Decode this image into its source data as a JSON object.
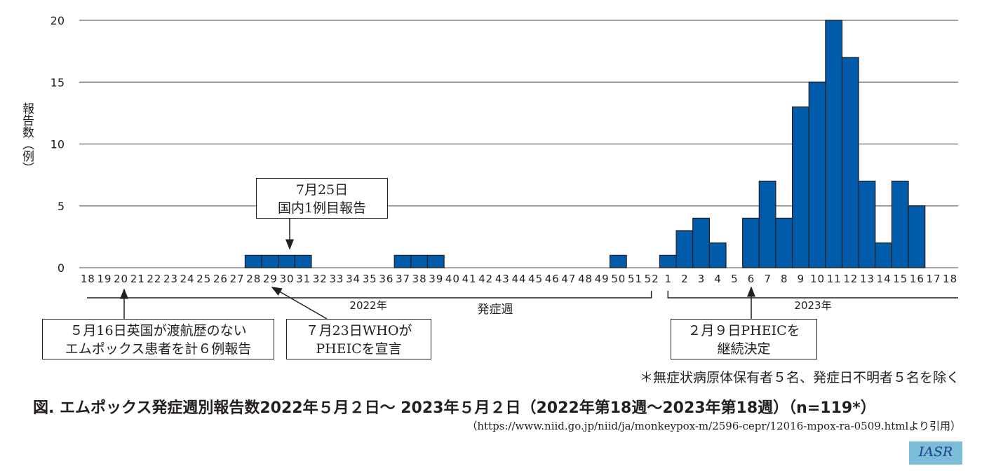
{
  "chart_data": {
    "type": "bar",
    "title": "図. エムポックス発症週別報告数2022年５月２日～ 2023年５月２日（2022年第18週～2023年第18週）（n=119*）",
    "xlabel": "発症週",
    "ylabel": "報告数（例）",
    "ylim": [
      0,
      20
    ],
    "yticks": [
      0,
      5,
      10,
      15,
      20
    ],
    "grid": true,
    "year_groups": [
      {
        "label": "2022年",
        "weeks": [
          "18",
          "19",
          "20",
          "21",
          "22",
          "23",
          "24",
          "25",
          "26",
          "27",
          "28",
          "29",
          "30",
          "31",
          "32",
          "33",
          "34",
          "35",
          "36",
          "37",
          "38",
          "39",
          "40",
          "41",
          "42",
          "43",
          "44",
          "45",
          "46",
          "47",
          "48",
          "49",
          "50",
          "51",
          "52"
        ],
        "values": [
          0,
          0,
          0,
          0,
          0,
          0,
          0,
          0,
          0,
          0,
          1,
          1,
          1,
          1,
          0,
          0,
          0,
          0,
          0,
          1,
          1,
          1,
          0,
          0,
          0,
          0,
          0,
          0,
          0,
          0,
          0,
          0,
          1,
          0,
          0
        ]
      },
      {
        "label": "2023年",
        "weeks": [
          "1",
          "2",
          "3",
          "4",
          "5",
          "6",
          "7",
          "8",
          "9",
          "10",
          "11",
          "12",
          "13",
          "14",
          "15",
          "16",
          "17",
          "18"
        ],
        "values": [
          1,
          3,
          4,
          2,
          0,
          4,
          7,
          4,
          13,
          15,
          20,
          17,
          7,
          2,
          7,
          5,
          0,
          0
        ]
      }
    ],
    "bar_color": "#005bab"
  },
  "annotations": [
    {
      "line1": "7月25日",
      "line2": "国内1例目報告"
    },
    {
      "line1": "５月16日英国が渡航歴のない",
      "line2": "エムポックス患者を計６例報告"
    },
    {
      "line1": "７月23日WHOが",
      "line2": "PHEICを宣言"
    },
    {
      "line1": "２月９日PHEICを",
      "line2": "継続決定"
    }
  ],
  "footnote": "＊無症状病原体保有者５名、発症日不明者５名を除く",
  "source": "（https://www.niid.go.jp/niid/ja/monkeypox-m/2596-cepr/12016-mpox-ra-0509.htmlより引用）",
  "logo": "IASR"
}
